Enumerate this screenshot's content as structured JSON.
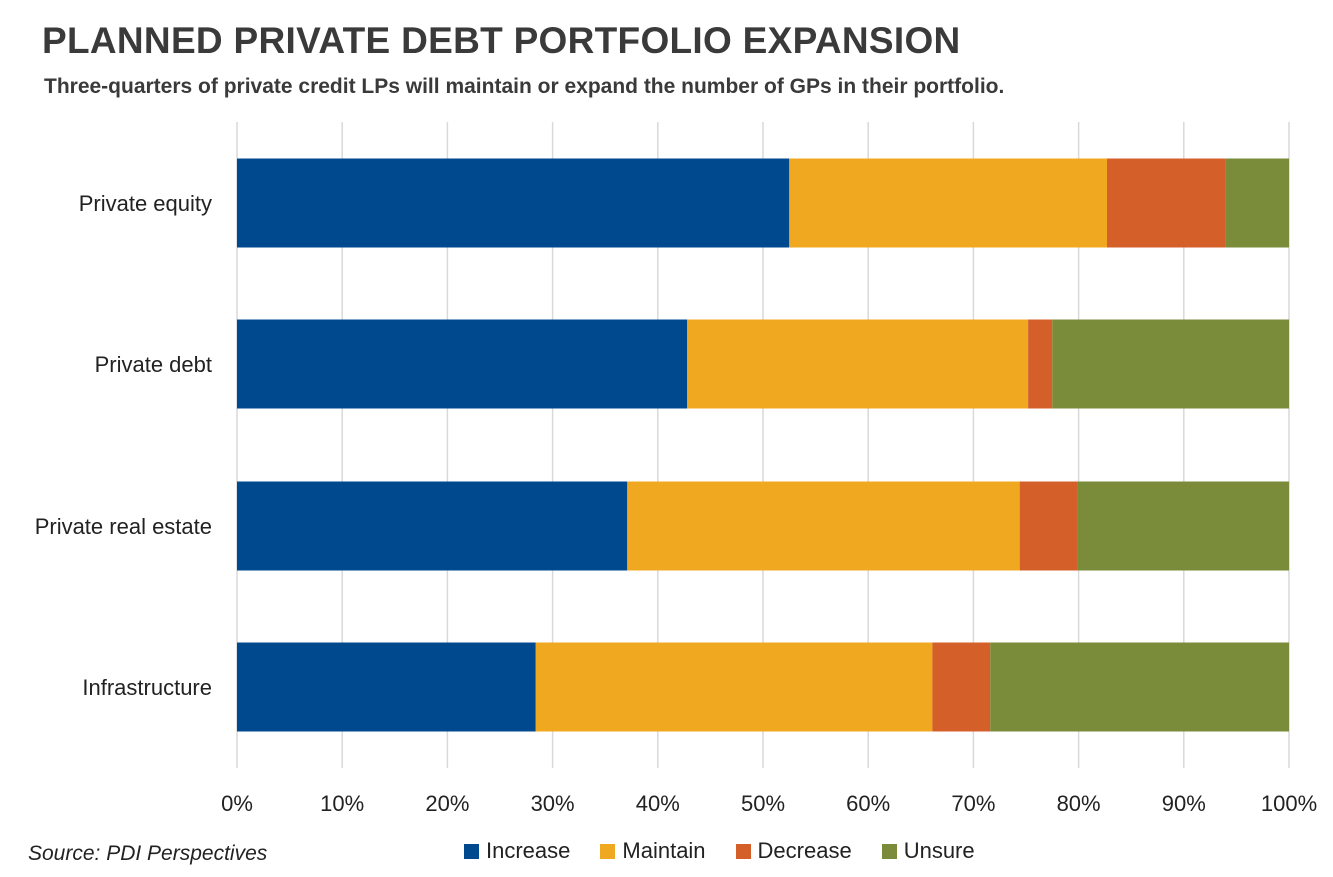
{
  "title": "PLANNED PRIVATE DEBT PORTFOLIO EXPANSION",
  "subtitle": "Three-quarters of private credit LPs will maintain or expand the number of GPs in their portfolio.",
  "source": "Source: PDI Perspectives",
  "chart_data": {
    "type": "bar",
    "orientation": "horizontal",
    "stacked": true,
    "categories": [
      "Private equity",
      "Private debt",
      "Private real estate",
      "Infrastructure"
    ],
    "series": [
      {
        "name": "Increase",
        "color": "#00498f",
        "values": [
          52.5,
          42.8,
          37.1,
          28.4
        ]
      },
      {
        "name": "Maintain",
        "color": "#f0a820",
        "values": [
          30.2,
          32.4,
          37.3,
          37.7
        ]
      },
      {
        "name": "Decrease",
        "color": "#d55f28",
        "values": [
          11.3,
          2.3,
          5.5,
          5.5
        ]
      },
      {
        "name": "Unsure",
        "color": "#7a8c3a",
        "values": [
          6.0,
          22.5,
          20.1,
          28.4
        ]
      }
    ],
    "xlim": [
      0,
      100
    ],
    "xticks": [
      "0%",
      "10%",
      "20%",
      "30%",
      "40%",
      "50%",
      "60%",
      "70%",
      "80%",
      "90%",
      "100%"
    ],
    "grid": true,
    "legend_position": "bottom"
  }
}
